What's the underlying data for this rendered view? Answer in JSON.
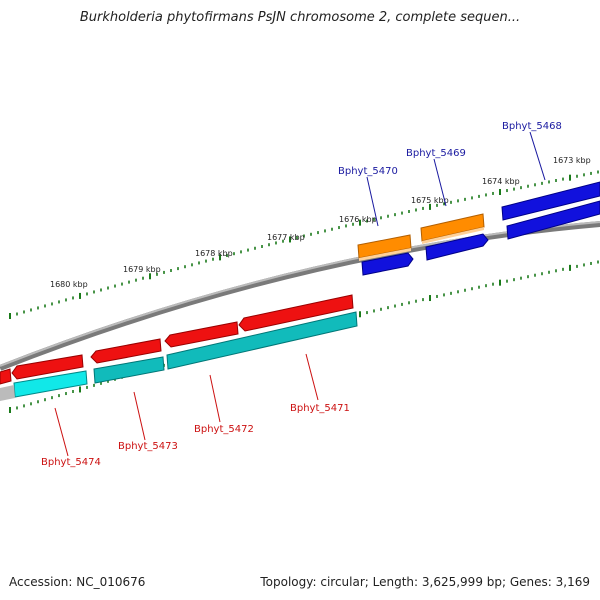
{
  "title": "Burkholderia phytofirmans PsJN chromosome 2, complete sequen...",
  "footer": {
    "accession": "Accession: NC_010676",
    "topology": "Topology: circular; Length: 3,625,999 bp; Genes: 3,169"
  },
  "kbp_labels": [
    "1680 kbp",
    "1679 kbp",
    "1678 kbp",
    "1677 kbp",
    "1676 kbp",
    "1675 kbp",
    "1674 kbp",
    "1673 kbp"
  ],
  "gene_labels_top": [
    "Bphyt_5470",
    "Bphyt_5469",
    "Bphyt_5468"
  ],
  "gene_labels_bottom": [
    "Bphyt_5474",
    "Bphyt_5473",
    "Bphyt_5472",
    "Bphyt_5471"
  ],
  "colors": {
    "backbone": "#888888",
    "ticks": "#1a7a1a",
    "red": "#ee1111",
    "cyan": "#11cccc",
    "blue": "#1111dd",
    "orange": "#ff8c00"
  }
}
